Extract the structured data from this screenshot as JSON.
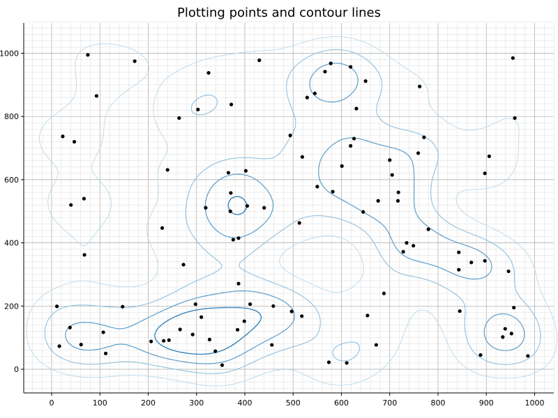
{
  "chart_data": {
    "type": "scatter",
    "title": "Plotting points and contour lines",
    "xlabel": "",
    "ylabel": "",
    "xlim": [
      -55,
      1040
    ],
    "ylim": [
      -75,
      1100
    ],
    "x_ticks": [
      0,
      100,
      200,
      300,
      400,
      500,
      600,
      700,
      800,
      900,
      1000
    ],
    "y_ticks": [
      0,
      200,
      400,
      600,
      800,
      1000
    ],
    "minor_step": 20,
    "grid": true,
    "contour_colors": [
      "#b8d7ec",
      "#8bbcdc",
      "#5a9cc9",
      "#2f7fb6"
    ],
    "points": [
      [
        75,
        995
      ],
      [
        172,
        975
      ],
      [
        430,
        978
      ],
      [
        955,
        985
      ],
      [
        325,
        938
      ],
      [
        578,
        968
      ],
      [
        566,
        942
      ],
      [
        619,
        957
      ],
      [
        650,
        912
      ],
      [
        93,
        865
      ],
      [
        372,
        838
      ],
      [
        303,
        822
      ],
      [
        529,
        860
      ],
      [
        545,
        873
      ],
      [
        631,
        825
      ],
      [
        762,
        895
      ],
      [
        23,
        737
      ],
      [
        47,
        720
      ],
      [
        264,
        795
      ],
      [
        494,
        740
      ],
      [
        959,
        795
      ],
      [
        519,
        672
      ],
      [
        619,
        707
      ],
      [
        626,
        730
      ],
      [
        601,
        643
      ],
      [
        771,
        734
      ],
      [
        759,
        684
      ],
      [
        906,
        674
      ],
      [
        240,
        631
      ],
      [
        366,
        622
      ],
      [
        402,
        628
      ],
      [
        700,
        662
      ],
      [
        705,
        615
      ],
      [
        897,
        620
      ],
      [
        40,
        520
      ],
      [
        67,
        540
      ],
      [
        371,
        558
      ],
      [
        582,
        562
      ],
      [
        550,
        578
      ],
      [
        319,
        511
      ],
      [
        370,
        500
      ],
      [
        405,
        517
      ],
      [
        440,
        511
      ],
      [
        676,
        533
      ],
      [
        645,
        498
      ],
      [
        718,
        560
      ],
      [
        717,
        533
      ],
      [
        229,
        447
      ],
      [
        513,
        463
      ],
      [
        780,
        443
      ],
      [
        376,
        410
      ],
      [
        387,
        415
      ],
      [
        68,
        362
      ],
      [
        735,
        400
      ],
      [
        728,
        372
      ],
      [
        749,
        391
      ],
      [
        843,
        370
      ],
      [
        869,
        338
      ],
      [
        897,
        343
      ],
      [
        843,
        315
      ],
      [
        946,
        310
      ],
      [
        273,
        331
      ],
      [
        387,
        271
      ],
      [
        688,
        240
      ],
      [
        11,
        199
      ],
      [
        147,
        198
      ],
      [
        298,
        206
      ],
      [
        411,
        206
      ],
      [
        459,
        200
      ],
      [
        654,
        170
      ],
      [
        845,
        184
      ],
      [
        957,
        195
      ],
      [
        518,
        168
      ],
      [
        497,
        183
      ],
      [
        399,
        152
      ],
      [
        310,
        165
      ],
      [
        38,
        132
      ],
      [
        266,
        126
      ],
      [
        385,
        125
      ],
      [
        107,
        117
      ],
      [
        292,
        110
      ],
      [
        327,
        94
      ],
      [
        232,
        90
      ],
      [
        206,
        88
      ],
      [
        243,
        92
      ],
      [
        939,
        128
      ],
      [
        952,
        113
      ],
      [
        934,
        102
      ],
      [
        61,
        78
      ],
      [
        16,
        73
      ],
      [
        456,
        77
      ],
      [
        672,
        77
      ],
      [
        339,
        57
      ],
      [
        112,
        50
      ],
      [
        888,
        45
      ],
      [
        986,
        42
      ],
      [
        574,
        22
      ],
      [
        611,
        20
      ],
      [
        353,
        13
      ]
    ]
  }
}
